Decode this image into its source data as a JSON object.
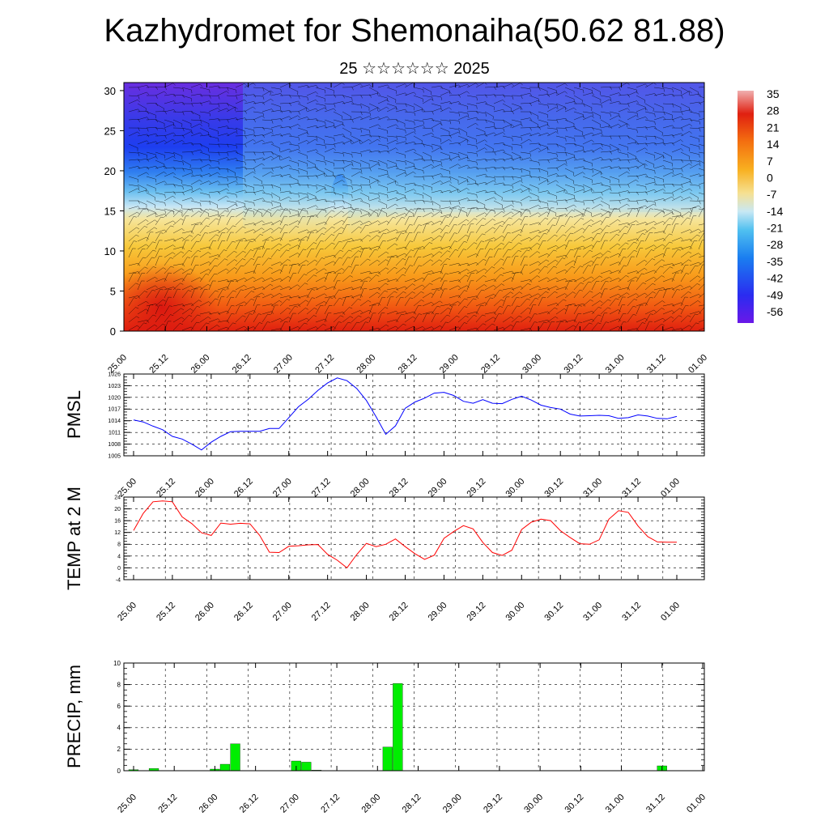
{
  "title": "Kazhydromet for Shemonaiha(50.62 81.88)",
  "subtitle": "25 ☆☆☆☆☆☆ 2025",
  "chart_data": [
    {
      "type": "heatmap",
      "description_visible": "cross-section of temperature with wind barbs",
      "x_ticks": [
        "25.00",
        "25.12",
        "26.00",
        "26.12",
        "27.00",
        "27.12",
        "28.00",
        "28.12",
        "29.00",
        "29.12",
        "30.00",
        "30.12",
        "31.00",
        "31.12",
        "01.00"
      ],
      "y_ticks": [
        0,
        5,
        10,
        15,
        20,
        25,
        30
      ],
      "ylim": [
        0,
        31
      ],
      "colorbar_labels": [
        "35",
        "28",
        "21",
        "14",
        "7",
        "0",
        "-7",
        "-14",
        "-21",
        "-28",
        "-35",
        "-42",
        "-49",
        "-56"
      ],
      "colors": {
        "hot": "#e8201a",
        "warm": "#f7a21c",
        "yellow": "#f6e08a",
        "light_blue": "#a8d8f0",
        "blue": "#2a5ef0",
        "purple": "#6a28e0"
      }
    },
    {
      "type": "line",
      "ylabel": "PMSL",
      "x_ticks": [
        "25.00",
        "25.12",
        "26.00",
        "26.12",
        "27.00",
        "27.12",
        "28.00",
        "28.12",
        "29.00",
        "29.12",
        "30.00",
        "30.12",
        "31.00",
        "31.12",
        "01.00"
      ],
      "y_ticks": [
        "1005",
        "1008",
        "1011",
        "1014",
        "1017",
        "1020",
        "1023",
        "1026"
      ],
      "ylim": [
        1005,
        1026
      ],
      "color": "#0000ff",
      "x": [
        0,
        3,
        6,
        9,
        12,
        15,
        18,
        21,
        24,
        27,
        30,
        33,
        36,
        39,
        42,
        45,
        48,
        51,
        54,
        57,
        60,
        63,
        66,
        69,
        72,
        75,
        78,
        81,
        84,
        87,
        90,
        93,
        96,
        99,
        102,
        105,
        108,
        111,
        114,
        117,
        120,
        123,
        126,
        129,
        132,
        135,
        138,
        141,
        144,
        147,
        150,
        153,
        156,
        159,
        162,
        165,
        168
      ],
      "values": [
        1014.2,
        1013.7,
        1012.6,
        1011.7,
        1010,
        1009.3,
        1008,
        1006.5,
        1008.5,
        1010,
        1011.2,
        1011.3,
        1011.3,
        1011.3,
        1012,
        1012,
        1014.8,
        1017.6,
        1019.5,
        1021.8,
        1023.7,
        1025,
        1024.3,
        1022.3,
        1019.2,
        1015,
        1010.5,
        1012.7,
        1017.2,
        1018.8,
        1019.8,
        1021.1,
        1021.3,
        1020.5,
        1019,
        1018.5,
        1019.4,
        1018.5,
        1018.4,
        1019.5,
        1020.3,
        1019.3,
        1018,
        1017.4,
        1017,
        1015.7,
        1015.2,
        1015.3,
        1015.4,
        1015.3,
        1014.6,
        1014.8,
        1015.5,
        1015.2,
        1014.6,
        1014.5,
        1015.1
      ]
    },
    {
      "type": "line",
      "ylabel": "TEMP at 2 M",
      "x_ticks": [
        "25.00",
        "25.12",
        "26.00",
        "26.12",
        "27.00",
        "27.12",
        "28.00",
        "28.12",
        "29.00",
        "29.12",
        "30.00",
        "30.12",
        "31.00",
        "31.12",
        "01.00"
      ],
      "y_ticks": [
        "-4",
        "0",
        "4",
        "8",
        "12",
        "16",
        "20",
        "24"
      ],
      "ylim": [
        -4,
        24
      ],
      "color": "#ff0000",
      "x": [
        0,
        3,
        6,
        9,
        12,
        15,
        18,
        21,
        24,
        27,
        30,
        33,
        36,
        39,
        42,
        45,
        48,
        51,
        54,
        57,
        60,
        63,
        66,
        69,
        72,
        75,
        78,
        81,
        84,
        87,
        90,
        93,
        96,
        99,
        102,
        105,
        108,
        111,
        114,
        117,
        120,
        123,
        126,
        129,
        132,
        135,
        138,
        141,
        144,
        147,
        150,
        153,
        156,
        159,
        162,
        165,
        168
      ],
      "values": [
        12.7,
        18.5,
        22.4,
        22.7,
        22.4,
        17.3,
        15,
        11.9,
        11,
        15.2,
        14.8,
        15.1,
        14.9,
        11,
        5.3,
        5.2,
        7.3,
        7.5,
        7.8,
        7.9,
        4.6,
        2.6,
        0,
        4.5,
        8.3,
        7.2,
        8,
        9.8,
        7.2,
        4.8,
        2.9,
        4.3,
        10,
        12.3,
        14.3,
        13.2,
        8.6,
        5.2,
        4.2,
        6,
        13,
        15.5,
        16.5,
        16,
        12.6,
        10.3,
        8.2,
        8,
        9.5,
        16.5,
        19.4,
        18.8,
        14.2,
        10.6,
        8.8,
        8.7,
        8.7
      ]
    },
    {
      "type": "bar",
      "ylabel": "PRECIP, mm",
      "x_ticks": [
        "25.00",
        "25.12",
        "26.00",
        "26.12",
        "27.00",
        "27.12",
        "28.00",
        "28.12",
        "29.00",
        "29.12",
        "30.00",
        "30.12",
        "31.00",
        "31.12",
        "01.00"
      ],
      "y_ticks": [
        "0",
        "2",
        "4",
        "6",
        "8",
        "10"
      ],
      "ylim": [
        0,
        10
      ],
      "color": "#00ee00",
      "x": [
        0,
        3,
        6,
        9,
        12,
        15,
        18,
        21,
        24,
        27,
        30,
        33,
        36,
        39,
        42,
        45,
        48,
        51,
        54,
        57,
        60,
        63,
        66,
        69,
        72,
        75,
        78,
        81,
        84,
        87,
        90,
        93,
        96,
        99,
        102,
        105,
        108,
        111,
        114,
        117,
        120,
        123,
        126,
        129,
        132,
        135,
        138,
        141,
        144,
        147,
        150,
        153,
        156,
        159,
        162,
        165
      ],
      "values": [
        0.1,
        0,
        0.2,
        0,
        0,
        0,
        0,
        0,
        0.15,
        0.6,
        2.5,
        0,
        0,
        0,
        0,
        0,
        0.9,
        0.8,
        0.05,
        0,
        0,
        0,
        0,
        0,
        0,
        2.2,
        8.1,
        0,
        0,
        0,
        0,
        0,
        0,
        0,
        0,
        0,
        0,
        0,
        0,
        0,
        0,
        0,
        0,
        0,
        0,
        0,
        0,
        0,
        0,
        0,
        0,
        0,
        0.45,
        0,
        0,
        0
      ]
    }
  ]
}
